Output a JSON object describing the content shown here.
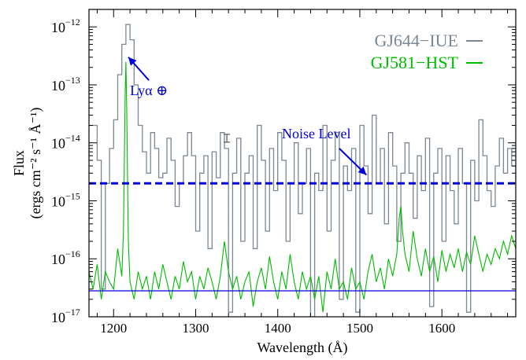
{
  "chart_data": {
    "type": "line",
    "xlabel": "Wavelength (Å)",
    "ylabel_line1": "Flux",
    "ylabel_line2": "(ergs cm⁻² s⁻¹ Å⁻¹)",
    "xlim": [
      1170,
      1690
    ],
    "ylim": [
      1e-17,
      2e-12
    ],
    "y_scale": "log",
    "x_ticks": [
      1200,
      1300,
      1400,
      1500,
      1600
    ],
    "x_tick_labels": [
      "1200",
      "1300",
      "1400",
      "1500",
      "1600"
    ],
    "y_ticks": [
      1e-17,
      1e-16,
      1e-15,
      1e-14,
      1e-13,
      1e-12
    ],
    "y_tick_labels": [
      {
        "base": "10",
        "exp": "−17"
      },
      {
        "base": "10",
        "exp": "−16"
      },
      {
        "base": "10",
        "exp": "−15"
      },
      {
        "base": "10",
        "exp": "−14"
      },
      {
        "base": "10",
        "exp": "−13"
      },
      {
        "base": "10",
        "exp": "−12"
      }
    ],
    "legend_position": "top-right",
    "series": [
      {
        "name": "GJ644−IUE",
        "color": "#7b8794",
        "style": "step",
        "x": [
          1170,
          1180,
          1185,
          1190,
          1195,
          1200,
          1205,
          1210,
          1215,
          1220,
          1225,
          1230,
          1235,
          1240,
          1245,
          1250,
          1255,
          1260,
          1265,
          1270,
          1275,
          1280,
          1285,
          1290,
          1295,
          1300,
          1305,
          1310,
          1315,
          1320,
          1325,
          1330,
          1335,
          1340,
          1345,
          1350,
          1355,
          1360,
          1365,
          1370,
          1375,
          1380,
          1385,
          1390,
          1395,
          1400,
          1405,
          1410,
          1415,
          1420,
          1425,
          1430,
          1435,
          1440,
          1445,
          1450,
          1455,
          1460,
          1465,
          1470,
          1475,
          1480,
          1485,
          1490,
          1495,
          1500,
          1505,
          1510,
          1515,
          1520,
          1525,
          1530,
          1535,
          1540,
          1545,
          1550,
          1555,
          1560,
          1565,
          1570,
          1575,
          1580,
          1585,
          1590,
          1595,
          1600,
          1605,
          1610,
          1615,
          1620,
          1625,
          1630,
          1635,
          1640,
          1645,
          1650,
          1655,
          1660,
          1665,
          1670,
          1675,
          1680,
          1685,
          1690
        ],
        "values": [
          2e-14,
          5e-15,
          3e-17,
          2e-15,
          8e-15,
          2.5e-14,
          1.5e-13,
          5e-13,
          1.1e-12,
          6e-13,
          1e-13,
          2e-14,
          7e-15,
          3e-15,
          1.5e-14,
          8e-15,
          2.5e-15,
          3e-15,
          1.2e-14,
          5e-15,
          8e-16,
          2e-15,
          6e-15,
          1.5e-14,
          6e-15,
          3e-16,
          3e-15,
          6e-15,
          1.5e-16,
          7e-15,
          2.5e-15,
          1.5e-14,
          8e-15,
          1.2e-17,
          3e-15,
          1.2e-14,
          2e-16,
          3e-15,
          6e-15,
          1.5e-16,
          2e-14,
          5e-15,
          3e-16,
          8e-15,
          1.5e-15,
          1.5e-14,
          5e-15,
          2e-16,
          2e-15,
          1e-14,
          6e-16,
          2e-15,
          8e-15,
          1e-17,
          3e-15,
          1.5e-15,
          2e-14,
          3e-16,
          5e-15,
          1.5e-14,
          2e-17,
          4e-15,
          1.5e-15,
          8e-15,
          1.2e-17,
          2e-14,
          4e-15,
          6e-16,
          3e-14,
          2e-15,
          8e-15,
          4e-16,
          1.5e-14,
          4e-15,
          2e-16,
          3e-15,
          1e-14,
          3e-15,
          5e-16,
          6e-15,
          1.5e-15,
          1.2e-14,
          1.5e-17,
          3e-15,
          8e-15,
          2e-16,
          6e-15,
          1.5e-15,
          4e-16,
          8e-15,
          2e-15,
          1.2e-17,
          5e-15,
          1e-15,
          2.5e-14,
          6e-15,
          1.5e-15,
          8e-16,
          4e-15,
          1.2e-14,
          3e-15,
          8e-15,
          4e-15,
          2e-15
        ]
      },
      {
        "name": "GJ581−HST",
        "color": "#00bb00",
        "style": "line",
        "x": [
          1170,
          1175,
          1180,
          1185,
          1190,
          1195,
          1200,
          1205,
          1210,
          1212,
          1214,
          1215,
          1216,
          1218,
          1220,
          1225,
          1230,
          1235,
          1240,
          1245,
          1250,
          1255,
          1260,
          1265,
          1270,
          1275,
          1280,
          1285,
          1290,
          1295,
          1300,
          1305,
          1310,
          1315,
          1320,
          1325,
          1330,
          1335,
          1340,
          1345,
          1350,
          1355,
          1360,
          1365,
          1370,
          1375,
          1380,
          1385,
          1390,
          1395,
          1400,
          1405,
          1410,
          1415,
          1420,
          1425,
          1430,
          1435,
          1440,
          1445,
          1450,
          1455,
          1460,
          1465,
          1470,
          1475,
          1480,
          1485,
          1490,
          1495,
          1500,
          1505,
          1510,
          1515,
          1520,
          1525,
          1530,
          1535,
          1540,
          1545,
          1548,
          1550,
          1552,
          1555,
          1560,
          1565,
          1570,
          1575,
          1580,
          1585,
          1590,
          1595,
          1600,
          1605,
          1610,
          1615,
          1620,
          1625,
          1630,
          1635,
          1640,
          1645,
          1650,
          1655,
          1660,
          1665,
          1670,
          1675,
          1680,
          1685,
          1690
        ],
        "values": [
          6e-17,
          3e-17,
          8e-17,
          2e-17,
          6e-17,
          4e-17,
          3e-17,
          1.5e-16,
          5e-17,
          3e-16,
          6e-14,
          2.5e-13,
          4e-14,
          2e-16,
          4e-17,
          2e-17,
          6e-17,
          3e-17,
          5e-17,
          2e-17,
          6e-17,
          3e-17,
          8e-17,
          4e-17,
          2e-17,
          5e-17,
          3e-17,
          9e-17,
          4e-17,
          6e-17,
          2e-17,
          5e-17,
          3e-17,
          7e-17,
          4e-17,
          2e-17,
          5e-17,
          2e-16,
          6e-17,
          3e-17,
          5e-17,
          2e-17,
          4e-17,
          6e-17,
          1.5e-17,
          4e-17,
          7e-17,
          3e-17,
          1.1e-16,
          4e-17,
          2e-17,
          6e-17,
          3e-17,
          1.2e-16,
          4e-17,
          2e-17,
          6e-17,
          3e-17,
          5e-17,
          2e-17,
          5e-17,
          1.2e-17,
          6e-17,
          3e-17,
          1e-16,
          3e-17,
          4e-17,
          2e-17,
          7e-17,
          3e-17,
          4e-17,
          2e-17,
          6e-17,
          1.2e-16,
          4e-17,
          7e-17,
          3e-17,
          1e-16,
          5e-17,
          1.2e-16,
          5e-16,
          8e-16,
          3e-16,
          1.2e-16,
          6e-17,
          3e-16,
          1e-16,
          5e-17,
          1.5e-16,
          6e-17,
          1.1e-16,
          4e-17,
          1.4e-16,
          6e-17,
          1.2e-16,
          7e-17,
          1.5e-16,
          6e-17,
          1.3e-16,
          8e-17,
          2.5e-16,
          1.2e-16,
          6e-17,
          1.2e-16,
          8e-17,
          1.5e-16,
          1e-16,
          2e-16,
          1.2e-16,
          2.5e-16,
          1.5e-16
        ]
      }
    ],
    "reference_lines": [
      {
        "name": "noise-level-line",
        "y": 2e-15,
        "color": "#0000dd",
        "style": "dashed"
      },
      {
        "name": "baseline-line",
        "y": 2.8e-17,
        "color": "#0000dd",
        "style": "solid"
      }
    ],
    "error_bar": {
      "x": 1338,
      "y": 1.2e-14
    },
    "annotations": [
      {
        "name": "lya-annotation",
        "text": "Lyα ⊕",
        "color": "#0000dd",
        "text_x": 1243,
        "text_y": 8e-14,
        "arrow_from_x": 1243,
        "arrow_from_y": 1.2e-13,
        "arrow_to_x": 1218,
        "arrow_to_y": 3e-13
      },
      {
        "name": "noise-level-annotation",
        "text": "Noise Level",
        "color": "#0000dd",
        "text_x": 1447,
        "text_y": 1.45e-14,
        "arrow_from_x": 1475,
        "arrow_from_y": 8e-15,
        "arrow_to_x": 1508,
        "arrow_to_y": 2.8e-15
      }
    ]
  }
}
